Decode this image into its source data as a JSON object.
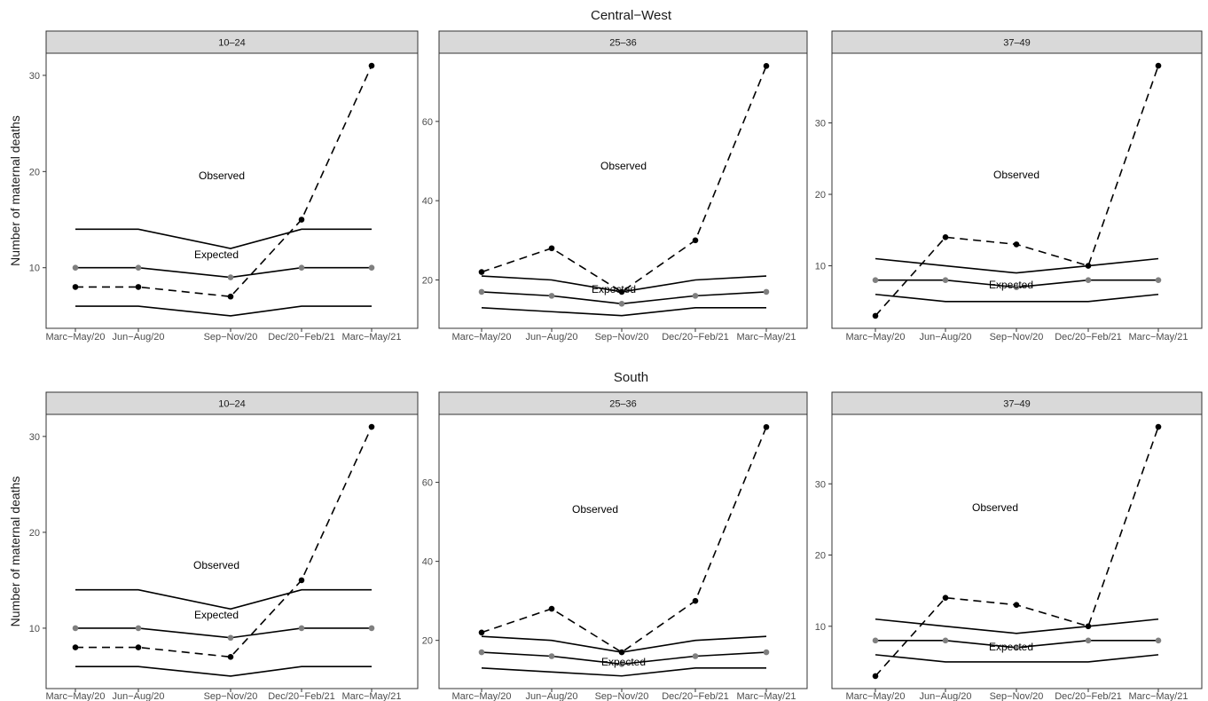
{
  "figure": {
    "y_axis_label": "Number of maternal deaths"
  },
  "colors": {
    "observed": "#000000",
    "expected": "#7f7f7f",
    "bounds": "#000000",
    "strip": "#d9d9d9"
  },
  "chart_data": [
    {
      "type": "line",
      "row": "Central−West",
      "facet": "10–24",
      "categories": [
        "Marc−May/20",
        "Jun−Aug/20",
        "Sep−Nov/20",
        "Dec/20−Feb/21",
        "Marc−May/21"
      ],
      "series": [
        {
          "name": "Observed",
          "values": [
            8,
            8,
            7,
            15,
            31
          ]
        },
        {
          "name": "Expected",
          "values": [
            10,
            10,
            9,
            10,
            10
          ]
        },
        {
          "values": [
            14,
            14,
            12,
            14,
            14
          ]
        },
        {
          "values": [
            6,
            6,
            5,
            6,
            6
          ]
        }
      ],
      "ylim": [
        3.7,
        32.3
      ],
      "yticks": [
        10,
        20,
        30
      ],
      "xlabel": "",
      "ylabel": "Number of maternal deaths",
      "grid": true
    },
    {
      "type": "line",
      "row": "Central−West",
      "facet": "25–36",
      "categories": [
        "Marc−May/20",
        "Jun−Aug/20",
        "Sep−Nov/20",
        "Dec/20−Feb/21",
        "Marc−May/21"
      ],
      "series": [
        {
          "name": "Observed",
          "values": [
            22,
            28,
            17,
            30,
            74
          ]
        },
        {
          "name": "Expected",
          "values": [
            17,
            16,
            14,
            16,
            17
          ]
        },
        {
          "values": [
            21,
            20,
            17,
            20,
            21
          ]
        },
        {
          "values": [
            13,
            12,
            11,
            13,
            13
          ]
        }
      ],
      "ylim": [
        7.8,
        77.2
      ],
      "yticks": [
        20,
        40,
        60
      ],
      "xlabel": "",
      "ylabel": "",
      "grid": true
    },
    {
      "type": "line",
      "row": "Central−West",
      "facet": "37–49",
      "categories": [
        "Marc−May/20",
        "Jun−Aug/20",
        "Sep−Nov/20",
        "Dec/20−Feb/21",
        "Marc−May/21"
      ],
      "series": [
        {
          "name": "Observed",
          "values": [
            3,
            14,
            13,
            10,
            38
          ]
        },
        {
          "name": "Expected",
          "values": [
            8,
            8,
            7,
            8,
            8
          ]
        },
        {
          "values": [
            11,
            10,
            9,
            10,
            11
          ]
        },
        {
          "values": [
            6,
            5,
            5,
            5,
            6
          ]
        }
      ],
      "ylim": [
        1.25,
        39.75
      ],
      "yticks": [
        10,
        20,
        30
      ],
      "xlabel": "",
      "ylabel": "",
      "grid": true
    },
    {
      "type": "line",
      "row": "South",
      "facet": "10–24",
      "categories": [
        "Marc−May/20",
        "Jun−Aug/20",
        "Sep−Nov/20",
        "Dec/20−Feb/21",
        "Marc−May/21"
      ],
      "series": [
        {
          "name": "Observed",
          "values": [
            8,
            8,
            7,
            15,
            31
          ]
        },
        {
          "name": "Expected",
          "values": [
            10,
            10,
            9,
            10,
            10
          ]
        },
        {
          "values": [
            14,
            14,
            12,
            14,
            14
          ]
        },
        {
          "values": [
            6,
            6,
            5,
            6,
            6
          ]
        }
      ],
      "ylim": [
        3.7,
        32.3
      ],
      "yticks": [
        10,
        20,
        30
      ],
      "xlabel": "",
      "ylabel": "Number of maternal deaths",
      "grid": true
    },
    {
      "type": "line",
      "row": "South",
      "facet": "25–36",
      "categories": [
        "Marc−May/20",
        "Jun−Aug/20",
        "Sep−Nov/20",
        "Dec/20−Feb/21",
        "Marc−May/21"
      ],
      "series": [
        {
          "name": "Observed",
          "values": [
            22,
            28,
            17,
            30,
            74
          ]
        },
        {
          "name": "Expected",
          "values": [
            17,
            16,
            14,
            16,
            17
          ]
        },
        {
          "values": [
            21,
            20,
            17,
            20,
            21
          ]
        },
        {
          "values": [
            13,
            12,
            11,
            13,
            13
          ]
        }
      ],
      "ylim": [
        7.8,
        77.2
      ],
      "yticks": [
        20,
        40,
        60
      ],
      "xlabel": "",
      "ylabel": "",
      "grid": true
    },
    {
      "type": "line",
      "row": "South",
      "facet": "37–49",
      "categories": [
        "Marc−May/20",
        "Jun−Aug/20",
        "Sep−Nov/20",
        "Dec/20−Feb/21",
        "Marc−May/21"
      ],
      "series": [
        {
          "name": "Observed",
          "values": [
            3,
            14,
            13,
            10,
            38
          ]
        },
        {
          "name": "Expected",
          "values": [
            8,
            8,
            7,
            8,
            8
          ]
        },
        {
          "values": [
            11,
            10,
            9,
            10,
            11
          ]
        },
        {
          "values": [
            6,
            5,
            5,
            5,
            6
          ]
        }
      ],
      "ylim": [
        1.25,
        39.75
      ],
      "yticks": [
        10,
        20,
        30
      ],
      "xlabel": "",
      "ylabel": "",
      "grid": true
    }
  ]
}
